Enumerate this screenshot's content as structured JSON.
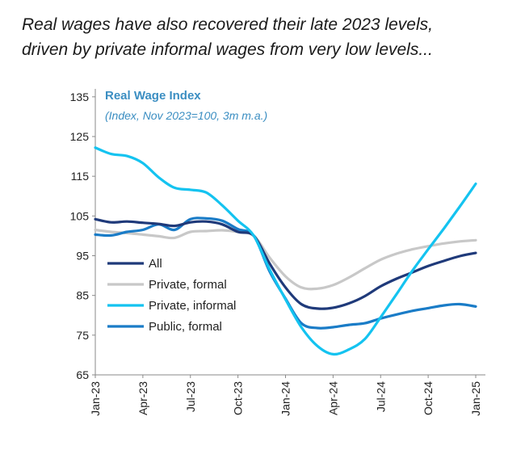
{
  "headline": {
    "line1": "Real wages have also recovered their late 2023 levels,",
    "line2": "driven by private informal wages from very low levels..."
  },
  "chart_data": {
    "type": "line",
    "title": "Real Wage Index",
    "subtitle": "(Index, Nov 2023=100, 3m m.a.)",
    "title_color": "#3b8ec2",
    "xlabel": "",
    "ylabel": "",
    "ylim": [
      65,
      137
    ],
    "yticks": [
      65,
      75,
      85,
      95,
      105,
      115,
      125,
      135
    ],
    "x_tick_labels": [
      "Jan-23",
      "Apr-23",
      "Jul-23",
      "Oct-23",
      "Jan-24",
      "Apr-24",
      "Jul-24",
      "Oct-24",
      "Jan-25"
    ],
    "x_tick_index": [
      0,
      3,
      6,
      9,
      12,
      15,
      18,
      21,
      24
    ],
    "n_points": 25,
    "legend_position": "lower-left",
    "series": [
      {
        "name": "All",
        "color": "#1f3a7a",
        "values": [
          104.2,
          103.4,
          103.6,
          103.3,
          103.0,
          102.5,
          103.4,
          103.6,
          102.9,
          101.0,
          100.0,
          93.0,
          87.0,
          82.8,
          81.7,
          81.9,
          83.0,
          84.8,
          87.3,
          89.2,
          90.8,
          92.4,
          93.7,
          94.9,
          95.7
        ]
      },
      {
        "name": "Private, formal",
        "color": "#c8c8c8",
        "values": [
          101.5,
          101.0,
          100.7,
          100.3,
          99.9,
          99.5,
          101.0,
          101.2,
          101.4,
          101.0,
          100.0,
          94.5,
          89.8,
          87.0,
          86.7,
          87.6,
          89.5,
          91.8,
          94.0,
          95.5,
          96.6,
          97.4,
          98.1,
          98.6,
          98.9
        ]
      },
      {
        "name": "Private, informal",
        "color": "#14c3f0",
        "values": [
          122.2,
          120.6,
          120.1,
          118.3,
          114.7,
          112.1,
          111.6,
          110.9,
          107.7,
          103.8,
          100.0,
          91.5,
          84.0,
          77.0,
          72.3,
          70.2,
          71.4,
          74.0,
          79.5,
          85.3,
          91.2,
          96.6,
          101.9,
          107.4,
          113.1
        ]
      },
      {
        "name": "Public, formal",
        "color": "#1a7cc7",
        "values": [
          100.3,
          100.1,
          101.0,
          101.5,
          102.9,
          101.5,
          104.2,
          104.4,
          103.8,
          101.7,
          100.0,
          91.0,
          84.2,
          78.0,
          76.8,
          77.0,
          77.6,
          78.0,
          79.2,
          80.2,
          81.1,
          81.8,
          82.5,
          82.8,
          82.2
        ]
      }
    ]
  }
}
